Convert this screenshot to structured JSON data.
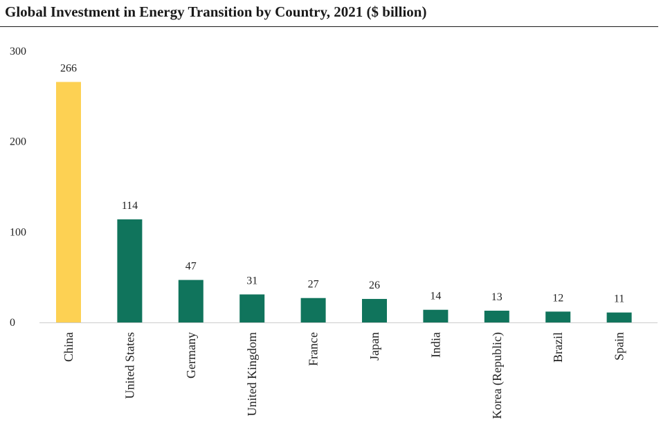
{
  "title": "Global Investment in Energy Transition by Country, 2021 ($ billion)",
  "colors": {
    "highlight": "#FDD153",
    "bar": "#10745C",
    "axis": "#cccccc",
    "text": "#222222"
  },
  "chart_data": {
    "type": "bar",
    "title": "Global Investment in Energy Transition by Country, 2021 ($ billion)",
    "xlabel": "",
    "ylabel": "",
    "ylim": [
      0,
      300
    ],
    "yticks": [
      0,
      100,
      200,
      300
    ],
    "grid": false,
    "categories": [
      "China",
      "United States",
      "Germany",
      "United Kingdom",
      "France",
      "Japan",
      "India",
      "Korea (Republic)",
      "Brazil",
      "Spain"
    ],
    "values": [
      266,
      114,
      47,
      31,
      27,
      26,
      14,
      13,
      12,
      11
    ],
    "data_labels": [
      "266",
      "114",
      "47",
      "31",
      "27",
      "26",
      "14",
      "13",
      "12",
      "11"
    ],
    "highlighted_category": "China"
  }
}
